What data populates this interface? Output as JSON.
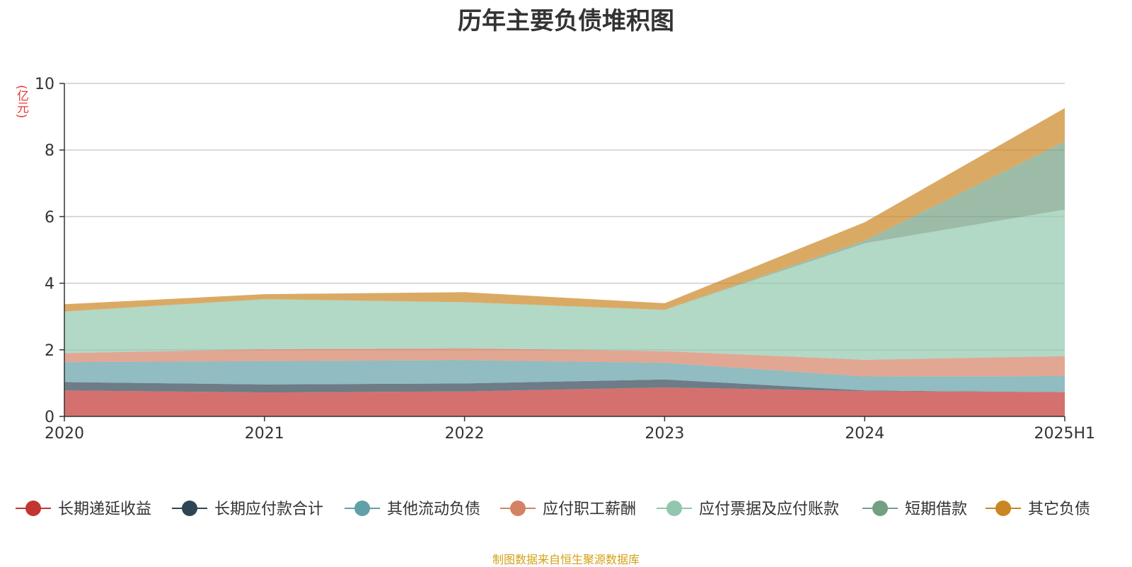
{
  "chart_data": {
    "type": "area",
    "title": "历年主要负债堆积图",
    "unit": "(亿元)",
    "source": "制图数据来自恒生聚源数据库",
    "categories": [
      "2020",
      "2021",
      "2022",
      "2023",
      "2024",
      "2025H1"
    ],
    "ylim": [
      0,
      10
    ],
    "yticks": [
      0,
      2,
      4,
      6,
      8,
      10
    ],
    "grid": true,
    "legend_position": "bottom",
    "stacked": true,
    "series": [
      {
        "name": "长期递延收益",
        "color": "#c23531",
        "values": [
          0.78,
          0.72,
          0.75,
          0.87,
          0.76,
          0.73
        ]
      },
      {
        "name": "长期应付款合计",
        "color": "#2f4554",
        "values": [
          0.25,
          0.24,
          0.24,
          0.24,
          0.02,
          0.0
        ]
      },
      {
        "name": "其他流动负债",
        "color": "#61a0a8",
        "values": [
          0.6,
          0.7,
          0.7,
          0.5,
          0.42,
          0.48
        ]
      },
      {
        "name": "应付职工薪酬",
        "color": "#d48265",
        "values": [
          0.27,
          0.36,
          0.36,
          0.35,
          0.5,
          0.6
        ]
      },
      {
        "name": "应付票据及应付账款",
        "color": "#91c7ae",
        "values": [
          1.25,
          1.5,
          1.38,
          1.24,
          3.5,
          4.4
        ]
      },
      {
        "name": "短期借款",
        "color": "#749f83",
        "values": [
          0.0,
          0.0,
          0.0,
          0.0,
          0.08,
          2.05
        ]
      },
      {
        "name": "其它负债",
        "color": "#ca8622",
        "values": [
          0.22,
          0.15,
          0.3,
          0.2,
          0.55,
          1.0
        ]
      }
    ]
  }
}
